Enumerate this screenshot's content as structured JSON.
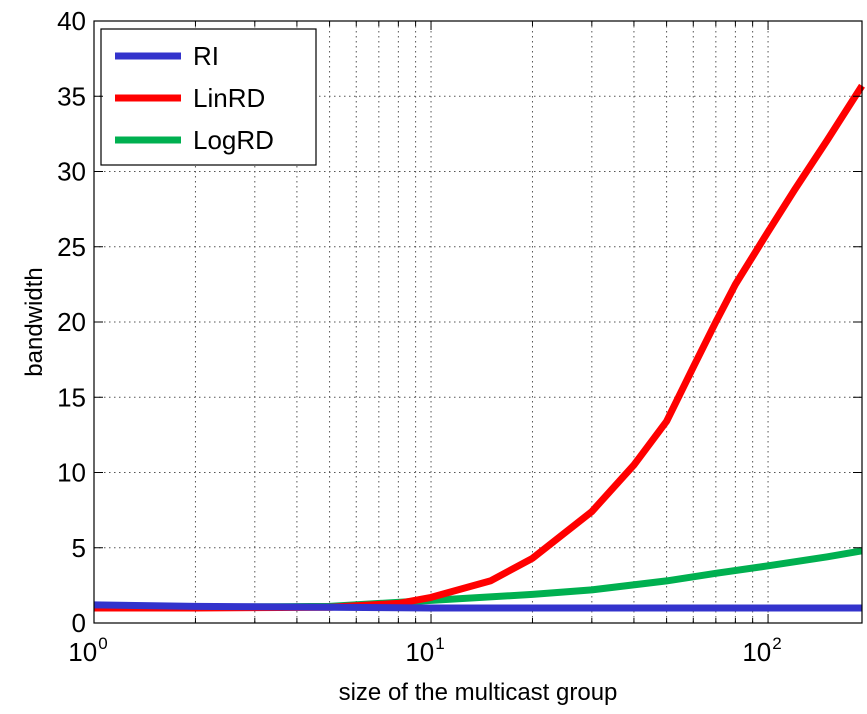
{
  "chart_data": {
    "type": "line",
    "title": "",
    "xlabel": "size of the multicast group",
    "ylabel": "bandwidth",
    "xscale": "log",
    "xlim": [
      1,
      190
    ],
    "ylim": [
      0,
      40
    ],
    "x_ticks": [
      {
        "value": 1,
        "base": "10",
        "exp": "0"
      },
      {
        "value": 10,
        "base": "10",
        "exp": "1"
      },
      {
        "value": 100,
        "base": "10",
        "exp": "2"
      }
    ],
    "y_ticks": [
      0,
      5,
      10,
      15,
      20,
      25,
      30,
      35,
      40
    ],
    "grid": true,
    "grid_style": "dotted",
    "legend": {
      "position": "top-left"
    },
    "series": [
      {
        "name": "RI",
        "color": "#3333cc",
        "x": [
          1,
          2,
          5,
          10,
          20,
          50,
          100,
          190
        ],
        "y": [
          1.2,
          1.1,
          1.05,
          1.0,
          1.0,
          1.0,
          1.0,
          1.0
        ]
      },
      {
        "name": "LinRD",
        "color": "#ff0000",
        "x": [
          1,
          2,
          5,
          8,
          10,
          15,
          20,
          30,
          40,
          50,
          60,
          70,
          80,
          100,
          120,
          150,
          190
        ],
        "y": [
          1.0,
          1.0,
          1.05,
          1.3,
          1.7,
          2.8,
          4.3,
          7.4,
          10.5,
          13.4,
          17.0,
          20.0,
          22.5,
          26.0,
          28.8,
          32.1,
          35.7
        ]
      },
      {
        "name": "LogRD",
        "color": "#00b050",
        "x": [
          1,
          2,
          5,
          10,
          20,
          30,
          50,
          70,
          100,
          150,
          190
        ],
        "y": [
          1.1,
          1.05,
          1.1,
          1.5,
          1.9,
          2.2,
          2.8,
          3.3,
          3.8,
          4.4,
          4.8
        ]
      }
    ]
  }
}
